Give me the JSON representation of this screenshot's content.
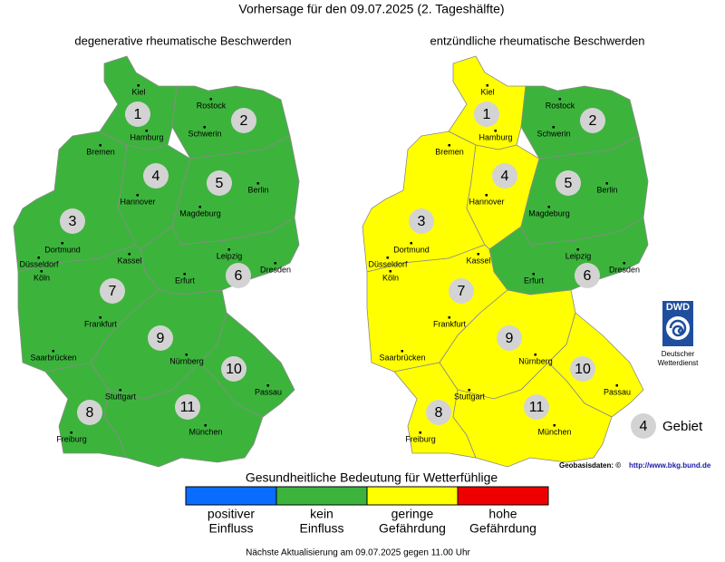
{
  "title": "Vorhersage für den 09.07.2025 (2. Tageshälfte)",
  "maps": [
    {
      "title": "degenerative rheumatische Beschwerden",
      "regions": [
        {
          "number": "1",
          "color": "#3cb43c"
        },
        {
          "number": "2",
          "color": "#3cb43c"
        },
        {
          "number": "3",
          "color": "#3cb43c"
        },
        {
          "number": "4",
          "color": "#3cb43c"
        },
        {
          "number": "5",
          "color": "#3cb43c"
        },
        {
          "number": "6",
          "color": "#3cb43c"
        },
        {
          "number": "7",
          "color": "#3cb43c"
        },
        {
          "number": "8",
          "color": "#3cb43c"
        },
        {
          "number": "9",
          "color": "#3cb43c"
        },
        {
          "number": "10",
          "color": "#3cb43c"
        },
        {
          "number": "11",
          "color": "#3cb43c"
        }
      ]
    },
    {
      "title": "entzündliche rheumatische Beschwerden",
      "regions": [
        {
          "number": "1",
          "color": "#ffff00"
        },
        {
          "number": "2",
          "color": "#3cb43c"
        },
        {
          "number": "3",
          "color": "#ffff00"
        },
        {
          "number": "4",
          "color": "#ffff00"
        },
        {
          "number": "5",
          "color": "#3cb43c"
        },
        {
          "number": "6",
          "color": "#3cb43c"
        },
        {
          "number": "7",
          "color": "#ffff00"
        },
        {
          "number": "8",
          "color": "#ffff00"
        },
        {
          "number": "9",
          "color": "#ffff00"
        },
        {
          "number": "10",
          "color": "#ffff00"
        },
        {
          "number": "11",
          "color": "#ffff00"
        }
      ]
    }
  ],
  "cities": [
    "Kiel",
    "Rostock",
    "Hamburg",
    "Schwerin",
    "Bremen",
    "Berlin",
    "Hannover",
    "Magdeburg",
    "Dortmund",
    "Düsseldorf",
    "Köln",
    "Kassel",
    "Leipzig",
    "Dresden",
    "Erfurt",
    "Frankfurt",
    "Saarbrücken",
    "Nürnberg",
    "Stuttgart",
    "Passau",
    "München",
    "Freiburg"
  ],
  "logo": {
    "abbr": "DWD",
    "name_lines": [
      "Deutscher",
      "Wetterdienst"
    ]
  },
  "key": {
    "number": "4",
    "label": "Gebiet"
  },
  "source": {
    "label": "Geobasisdaten: ©",
    "link": "http://www.bkg.bund.de"
  },
  "legend": {
    "title": "Gesundheitliche Bedeutung für Wetterfühlige",
    "items": [
      {
        "lines": [
          "positiver",
          "Einfluss"
        ],
        "color": "#0a6cff"
      },
      {
        "lines": [
          "kein",
          "Einfluss"
        ],
        "color": "#3cb43c"
      },
      {
        "lines": [
          "geringe",
          "Gefährdung"
        ],
        "color": "#ffff00"
      },
      {
        "lines": [
          "hohe",
          "Gefährdung"
        ],
        "color": "#ee0000"
      }
    ]
  },
  "footer": "Nächste Aktualisierung am 09.07.2025 gegen 11.00 Uhr"
}
